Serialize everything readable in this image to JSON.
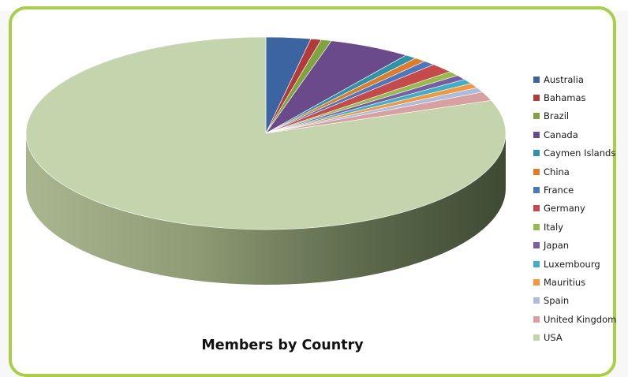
{
  "chart_data": {
    "type": "pie",
    "title": "Members by Country",
    "legend_position": "right",
    "slices": [
      {
        "label": "Australia",
        "value": 3.0,
        "color": "#3b64a0"
      },
      {
        "label": "Bahamas",
        "value": 0.7,
        "color": "#b23a3a"
      },
      {
        "label": "Brazil",
        "value": 0.7,
        "color": "#7fa33d"
      },
      {
        "label": "Canada",
        "value": 5.5,
        "color": "#6a4a8a"
      },
      {
        "label": "Caymen Islands",
        "value": 0.8,
        "color": "#2c95ab"
      },
      {
        "label": "China",
        "value": 0.8,
        "color": "#e07c28"
      },
      {
        "label": "France",
        "value": 0.8,
        "color": "#4a78c0"
      },
      {
        "label": "Germany",
        "value": 1.6,
        "color": "#c64a4a"
      },
      {
        "label": "Italy",
        "value": 0.8,
        "color": "#96bb4d"
      },
      {
        "label": "Japan",
        "value": 0.8,
        "color": "#7a5ca5"
      },
      {
        "label": "Luxembourg",
        "value": 0.8,
        "color": "#3cb0c8"
      },
      {
        "label": "Mauritius",
        "value": 0.8,
        "color": "#f4963c"
      },
      {
        "label": "Spain",
        "value": 0.8,
        "color": "#a9bde0"
      },
      {
        "label": "United Kingdom",
        "value": 1.5,
        "color": "#d9a0a0"
      },
      {
        "label": "USA",
        "value": 80.3,
        "color": "#c4d5ad"
      }
    ]
  }
}
